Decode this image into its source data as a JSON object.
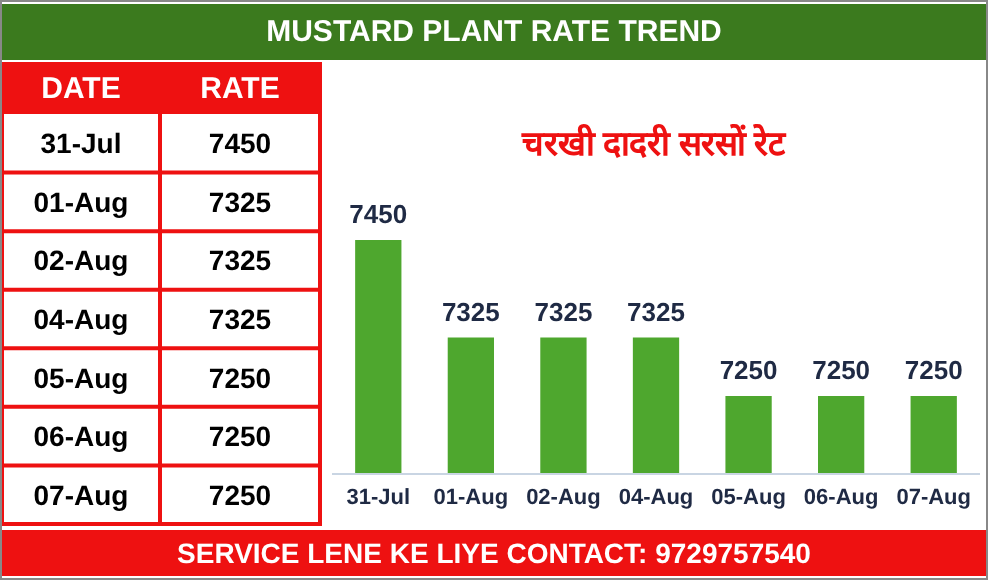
{
  "chart_data": [
    {
      "type": "other",
      "annotations": [
        "DATE",
        "RATE",
        "31-Jul",
        "7450",
        "01-Aug",
        "7325",
        "02-Aug",
        "7325",
        "04-Aug",
        "7325",
        "05-Aug",
        "7250",
        "06-Aug",
        "7250",
        "07-Aug",
        "7250"
      ]
    },
    {
      "type": "bar",
      "title": "MUSTARD PLANT RATE TREND",
      "subtitle": "चरखी दादरी सरसों रेट",
      "categories": [
        "31-Jul",
        "01-Aug",
        "02-Aug",
        "04-Aug",
        "05-Aug",
        "06-Aug",
        "07-Aug"
      ],
      "values": [
        7450,
        7325,
        7325,
        7325,
        7250,
        7250,
        7250
      ],
      "color": "#4ea72e",
      "ylim": [
        7150,
        7450
      ],
      "tick_labels": "x",
      "data_labels": true,
      "annotations": [
        "SERVICE LENE KE LIYE CONTACT: 9729757540"
      ]
    }
  ]
}
